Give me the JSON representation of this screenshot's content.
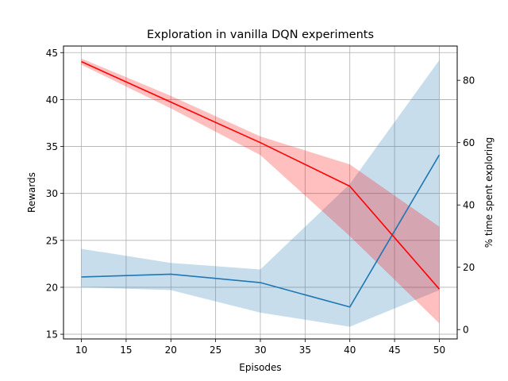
{
  "chart_data": {
    "type": "line",
    "title": "Exploration in vanilla DQN experiments",
    "xlabel": "Episodes",
    "ylabel_left": "Rewards",
    "ylabel_right": "% time spent exploring",
    "x": [
      10,
      20,
      30,
      40,
      50
    ],
    "xlim": [
      8,
      52
    ],
    "xticks": [
      10,
      15,
      20,
      25,
      30,
      35,
      40,
      45,
      50
    ],
    "ylim_left": [
      14.5,
      45.7
    ],
    "yticks_left": [
      15,
      20,
      25,
      30,
      35,
      40,
      45
    ],
    "ylim_right": [
      -3,
      91
    ],
    "yticks_right": [
      0,
      20,
      40,
      60,
      80
    ],
    "grid": true,
    "series": [
      {
        "axis": "left",
        "color": "#1f77b4",
        "band_color": "#1f77b4",
        "values": [
          21.1,
          21.4,
          20.5,
          17.9,
          34.1
        ],
        "band_lower": [
          20.0,
          19.7,
          17.3,
          15.8,
          19.7
        ],
        "band_upper": [
          24.1,
          22.6,
          21.9,
          31.0,
          44.2
        ]
      },
      {
        "axis": "right",
        "color": "#ff0000",
        "band_color": "#ff0000",
        "values": [
          86,
          73,
          60,
          46,
          13
        ],
        "band_lower": [
          85,
          71,
          56,
          30,
          2
        ],
        "band_upper": [
          87,
          75,
          62,
          53,
          33
        ]
      }
    ]
  }
}
